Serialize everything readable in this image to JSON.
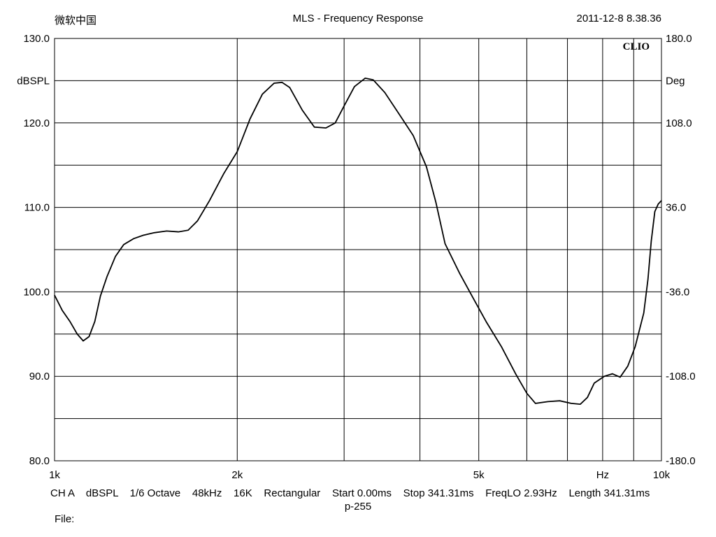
{
  "header": {
    "left": "微软中国",
    "center": "MLS - Frequency Response",
    "right": "2011-12-8 8.38.36"
  },
  "brand": "CLIO",
  "footer": {
    "info_line": "CH A    dBSPL    1/6 Octave    48kHz    16K    Rectangular    Start 0.00ms    Stop 341.31ms    FreqLO 2.93Hz    Length 341.31ms",
    "info_line2": "p-255",
    "file_label": "File:"
  },
  "chart_data": {
    "type": "line",
    "title": "MLS - Frequency Response",
    "xscale": "log",
    "xlim": [
      1000,
      10000
    ],
    "x_ticks": [
      {
        "value": 1000,
        "label": "1k"
      },
      {
        "value": 2000,
        "label": "2k"
      },
      {
        "value": 5000,
        "label": "5k"
      },
      {
        "value": 8000,
        "label": "Hz"
      },
      {
        "value": 10000,
        "label": "10k"
      }
    ],
    "x_gridlines": [
      1000,
      2000,
      3000,
      4000,
      5000,
      6000,
      7000,
      8000,
      9000,
      10000
    ],
    "ylabel": "dBSPL",
    "ylim": [
      80,
      130
    ],
    "y_ticks": [
      {
        "value": 80,
        "label": "80.0"
      },
      {
        "value": 90,
        "label": "90.0"
      },
      {
        "value": 100,
        "label": "100.0"
      },
      {
        "value": 110,
        "label": "110.0"
      },
      {
        "value": 120,
        "label": "120.0"
      },
      {
        "value": 125,
        "label": "dBSPL"
      },
      {
        "value": 130,
        "label": "130.0"
      }
    ],
    "y_gridlines": [
      85,
      90,
      95,
      100,
      105,
      110,
      115,
      120,
      125
    ],
    "y2label": "Deg",
    "y2lim": [
      -180,
      180
    ],
    "y2_ticks": [
      {
        "value": -180,
        "label": "-180.0"
      },
      {
        "value": -108,
        "label": "-108.0"
      },
      {
        "value": -36,
        "label": "-36.0"
      },
      {
        "value": 36,
        "label": "36.0"
      },
      {
        "value": 108,
        "label": "108.0"
      },
      {
        "value": 144,
        "label": "Deg"
      },
      {
        "value": 180,
        "label": "180.0"
      }
    ],
    "grid": true,
    "series": [
      {
        "color": "#000000",
        "points": [
          [
            1000,
            99.6
          ],
          [
            1030,
            97.8
          ],
          [
            1060,
            96.5
          ],
          [
            1090,
            95.0
          ],
          [
            1115,
            94.2
          ],
          [
            1140,
            94.7
          ],
          [
            1165,
            96.5
          ],
          [
            1190,
            99.5
          ],
          [
            1220,
            101.8
          ],
          [
            1260,
            104.2
          ],
          [
            1300,
            105.6
          ],
          [
            1350,
            106.3
          ],
          [
            1400,
            106.7
          ],
          [
            1460,
            107.0
          ],
          [
            1530,
            107.2
          ],
          [
            1600,
            107.1
          ],
          [
            1660,
            107.3
          ],
          [
            1720,
            108.4
          ],
          [
            1800,
            110.8
          ],
          [
            1900,
            114.0
          ],
          [
            2000,
            116.6
          ],
          [
            2100,
            120.5
          ],
          [
            2200,
            123.4
          ],
          [
            2300,
            124.7
          ],
          [
            2370,
            124.8
          ],
          [
            2440,
            124.2
          ],
          [
            2560,
            121.5
          ],
          [
            2680,
            119.5
          ],
          [
            2800,
            119.4
          ],
          [
            2900,
            120.0
          ],
          [
            3000,
            122.0
          ],
          [
            3120,
            124.3
          ],
          [
            3250,
            125.3
          ],
          [
            3350,
            125.1
          ],
          [
            3500,
            123.6
          ],
          [
            3700,
            121.0
          ],
          [
            3900,
            118.5
          ],
          [
            4100,
            114.8
          ],
          [
            4250,
            110.6
          ],
          [
            4400,
            105.7
          ],
          [
            4650,
            102.2
          ],
          [
            4900,
            99.2
          ],
          [
            5150,
            96.4
          ],
          [
            5450,
            93.5
          ],
          [
            5750,
            90.3
          ],
          [
            6000,
            88.0
          ],
          [
            6200,
            86.8
          ],
          [
            6500,
            87.0
          ],
          [
            6800,
            87.1
          ],
          [
            7100,
            86.8
          ],
          [
            7350,
            86.7
          ],
          [
            7550,
            87.5
          ],
          [
            7750,
            89.2
          ],
          [
            8050,
            90.0
          ],
          [
            8300,
            90.3
          ],
          [
            8550,
            89.9
          ],
          [
            8800,
            91.2
          ],
          [
            9050,
            93.5
          ],
          [
            9350,
            97.5
          ],
          [
            9500,
            101.5
          ],
          [
            9620,
            106.0
          ],
          [
            9750,
            109.5
          ],
          [
            9880,
            110.4
          ],
          [
            10000,
            110.8
          ]
        ]
      }
    ]
  }
}
